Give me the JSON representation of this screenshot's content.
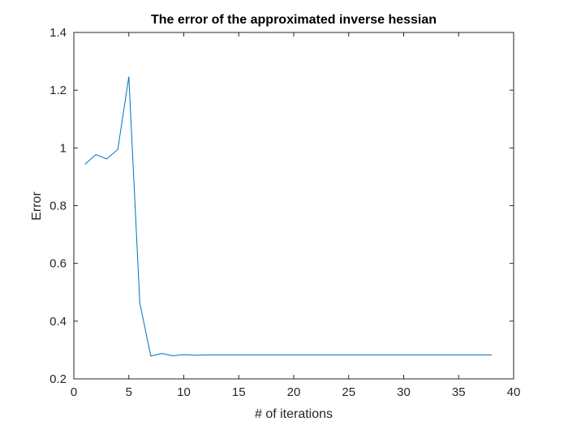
{
  "chart_data": {
    "type": "line",
    "title": "The error of the approximated inverse hessian",
    "xlabel": "# of iterations",
    "ylabel": "Error",
    "xlim": [
      0,
      40
    ],
    "ylim": [
      0.2,
      1.4
    ],
    "xticks": [
      0,
      5,
      10,
      15,
      20,
      25,
      30,
      35,
      40
    ],
    "yticks": [
      0.2,
      0.4,
      0.6,
      0.8,
      1.0,
      1.2,
      1.4
    ],
    "xtick_labels": [
      "0",
      "5",
      "10",
      "15",
      "20",
      "25",
      "30",
      "35",
      "40"
    ],
    "ytick_labels": [
      "0.2",
      "0.4",
      "0.6",
      "0.8",
      "1",
      "1.2",
      "1.4"
    ],
    "grid": false,
    "colors": {
      "line": "#0072BD",
      "axes": "#262626"
    },
    "series": [
      {
        "x": [
          1,
          2,
          3,
          4,
          5,
          6,
          7,
          8,
          9,
          10,
          11,
          12,
          13,
          14,
          15,
          16,
          17,
          18,
          19,
          20,
          21,
          22,
          23,
          24,
          25,
          26,
          27,
          28,
          29,
          30,
          31,
          32,
          33,
          34,
          35,
          36,
          37,
          38
        ],
        "values": [
          0.943,
          0.977,
          0.962,
          0.995,
          1.247,
          0.463,
          0.279,
          0.288,
          0.28,
          0.284,
          0.282,
          0.283,
          0.283,
          0.283,
          0.283,
          0.283,
          0.283,
          0.283,
          0.283,
          0.283,
          0.283,
          0.283,
          0.283,
          0.283,
          0.283,
          0.283,
          0.283,
          0.283,
          0.283,
          0.283,
          0.283,
          0.283,
          0.283,
          0.283,
          0.283,
          0.283,
          0.283,
          0.283
        ]
      }
    ]
  }
}
